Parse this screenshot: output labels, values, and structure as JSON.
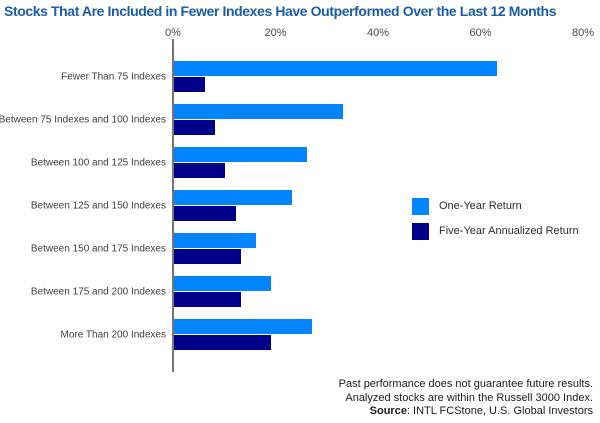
{
  "title": "Stocks That Are Included in Fewer Indexes Have Outperformed Over the Last 12 Months",
  "colors": {
    "title_blue": "#1a5da4",
    "one_year_blue": "#0285ff",
    "five_year_navy": "#00008b",
    "axis_gray": "#757575"
  },
  "footer": {
    "line1": "Past performance does not guarantee future results.",
    "line2": "Analyzed stocks are within the Russell 3000 Index.",
    "source_bold": "Source",
    "source_text": ": INTL FCStone, U.S. Global Investors"
  },
  "chart_data": {
    "type": "bar",
    "orientation": "horizontal",
    "title": "Stocks That Are Included in Fewer Indexes Have Outperformed Over the Last 12 Months",
    "categories": [
      "Fewer Than 75 Indexes",
      "Between 75 Indexes and 100 Indexes",
      "Between 100 and 125 Indexes",
      "Between 125 and 150 Indexes",
      "Between 150 and 175 Indexes",
      "Between 175 and 200 Indexes",
      "More Than 200 Indexes"
    ],
    "series": [
      {
        "name": "One-Year Return",
        "color": "#0285ff",
        "values": [
          63,
          33,
          26,
          23,
          16,
          19,
          27
        ]
      },
      {
        "name": "Five-Year Annualized Return",
        "color": "#00008b",
        "values": [
          6,
          8,
          10,
          12,
          13,
          13,
          19
        ]
      }
    ],
    "x_ticks": [
      "0%",
      "20%",
      "40%",
      "60%",
      "80%"
    ],
    "xlim": [
      0,
      80
    ],
    "unit": "percent",
    "grid": false,
    "legend_position": "right"
  }
}
